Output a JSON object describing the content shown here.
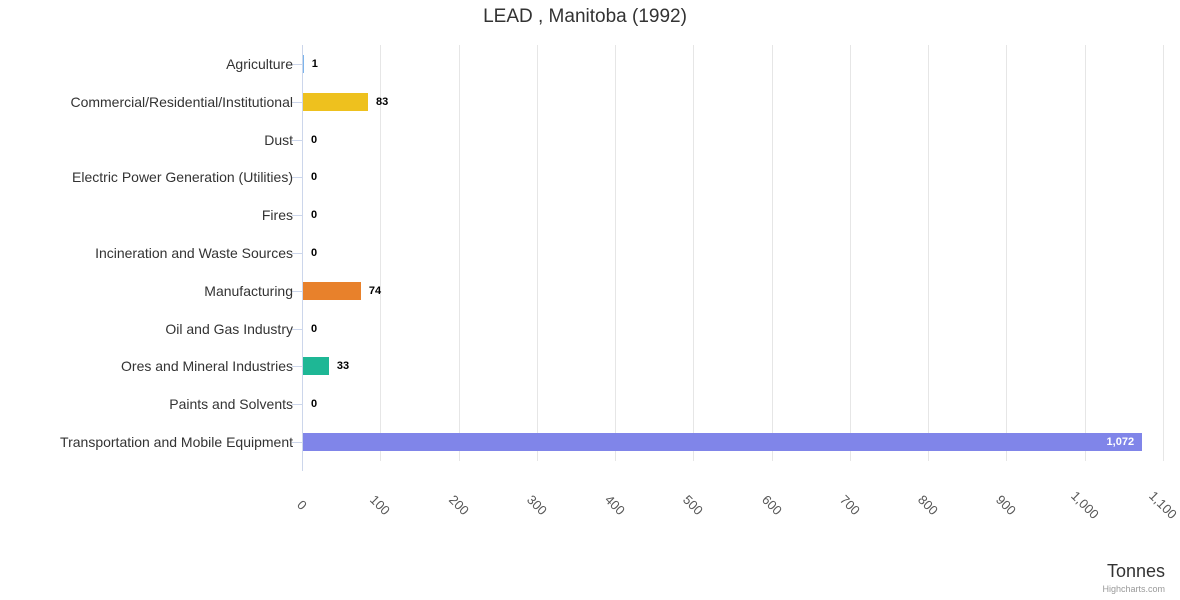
{
  "chart": {
    "credits_label": "Highcharts.com"
  },
  "chart_data": {
    "type": "bar",
    "orientation": "horizontal",
    "title": "LEAD , Manitoba (1992)",
    "categories": [
      "Agriculture",
      "Commercial/Residential/Institutional",
      "Dust",
      "Electric Power Generation (Utilities)",
      "Fires",
      "Incineration and Waste Sources",
      "Manufacturing",
      "Oil and Gas Industry",
      "Ores and Mineral Industries",
      "Paints and Solvents",
      "Transportation and Mobile Equipment"
    ],
    "values": [
      1,
      83,
      0,
      0,
      0,
      0,
      74,
      0,
      33,
      0,
      1072
    ],
    "value_labels": [
      "1",
      "83",
      "0",
      "0",
      "0",
      "0",
      "74",
      "0",
      "33",
      "0",
      "1,072"
    ],
    "bar_colors": [
      "#7cb5ec",
      "#eec11e",
      "#7cb5ec",
      "#7cb5ec",
      "#7cb5ec",
      "#7cb5ec",
      "#e8812b",
      "#7cb5ec",
      "#1eb795",
      "#7cb5ec",
      "#8085e9"
    ],
    "xlabel": "Tonnes",
    "ylabel": "",
    "xlim": [
      0,
      1100
    ],
    "xticks": [
      0,
      100,
      200,
      300,
      400,
      500,
      600,
      700,
      800,
      900,
      1000,
      1100
    ],
    "xtick_labels": [
      "0",
      "100",
      "200",
      "300",
      "400",
      "500",
      "600",
      "700",
      "800",
      "900",
      "1,000",
      "1,100"
    ],
    "grid": true,
    "legend": false,
    "colors": {
      "grid": "#e6e6e6",
      "axis": "#ccd6eb",
      "title_text": "#333333",
      "category_label": "#333333",
      "value_label": "#000000",
      "value_label_inside": "#ffffff",
      "tick_label": "#555555",
      "axis_title": "#333333",
      "credits": "#999999"
    }
  }
}
